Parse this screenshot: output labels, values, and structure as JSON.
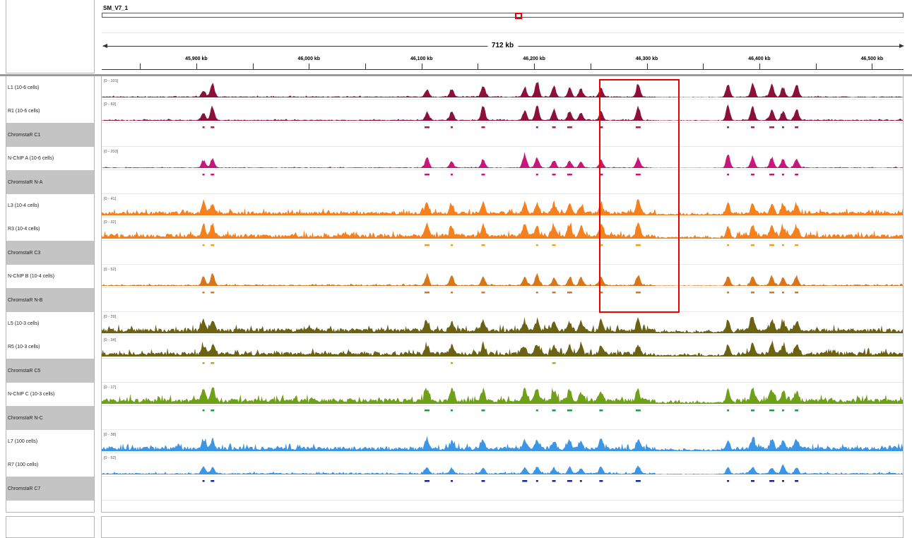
{
  "header": {
    "chromosome": "SM_V7_1",
    "span_label": "712 kb",
    "ruler_ticks": [
      {
        "label": "45,900 kb",
        "kb": 45900
      },
      {
        "label": "46,000 kb",
        "kb": 46000
      },
      {
        "label": "46,100 kb",
        "kb": 46100
      },
      {
        "label": "46,200 kb",
        "kb": 46200
      },
      {
        "label": "46,300 kb",
        "kb": 46300
      },
      {
        "label": "46,400 kb",
        "kb": 46400
      },
      {
        "label": "46,500 kb",
        "kb": 46500
      }
    ],
    "view_start_kb": 45816,
    "view_end_kb": 46528
  },
  "region_of_interest": {
    "start_kb": 46308,
    "end_kb": 46380,
    "color": "#e00000"
  },
  "peak_positions_kb": [
    45906,
    45914,
    46105,
    46127,
    46155,
    46192,
    46203,
    46218,
    46232,
    46242,
    46260,
    46293,
    46373,
    46395,
    46412,
    46422,
    46434
  ],
  "tracks": [
    {
      "name": "L1 (10-6 cells)",
      "type": "signal",
      "range": "[0 - 101]",
      "color": "#8c1038",
      "bg": 0.07,
      "peaks": [
        0.35,
        0.9,
        0.45,
        0.5,
        0.75,
        0.6,
        0.95,
        0.65,
        0.55,
        0.5,
        0.55,
        0.8,
        0.85,
        0.8,
        0.7,
        0.6,
        0.75
      ]
    },
    {
      "name": "R1 (10-6 cells)",
      "type": "signal",
      "range": "[0 - 83]",
      "color": "#8c1038",
      "bg": 0.07,
      "peaks": [
        0.45,
        0.85,
        0.5,
        0.55,
        0.85,
        0.6,
        0.9,
        0.65,
        0.55,
        0.45,
        0.5,
        0.85,
        0.9,
        0.85,
        0.65,
        0.55,
        0.7
      ]
    },
    {
      "name": "ChromstaR C1",
      "type": "peaks",
      "color": "#c0143c",
      "marks": [
        0,
        1,
        2,
        3,
        4,
        6,
        7,
        8,
        10,
        11,
        12,
        13,
        14,
        15,
        16
      ]
    },
    {
      "name": "N-ChIP A (10-6 cells)",
      "type": "signal",
      "range": "[0 - 203]",
      "color": "#c8177a",
      "bg": 0.05,
      "peaks": [
        0.45,
        0.55,
        0.6,
        0.35,
        0.5,
        0.85,
        0.6,
        0.5,
        0.45,
        0.35,
        0.45,
        0.6,
        0.85,
        0.7,
        0.65,
        0.55,
        0.6
      ]
    },
    {
      "name": "ChromstaR N-A",
      "type": "peaks",
      "color": "#c8177a",
      "marks": [
        0,
        1,
        2,
        3,
        4,
        6,
        7,
        8,
        10,
        11,
        12,
        13,
        14,
        15,
        16
      ]
    },
    {
      "name": "L3 (10-4 cells)",
      "type": "signal",
      "range": "[0 - 41]",
      "color": "#f5801e",
      "bg": 0.25,
      "peaks": [
        0.55,
        0.6,
        0.65,
        0.55,
        0.65,
        0.6,
        0.55,
        0.6,
        0.55,
        0.5,
        0.6,
        0.85,
        0.65,
        0.6,
        0.55,
        0.5,
        0.6
      ]
    },
    {
      "name": "R3 (10-4 cells)",
      "type": "signal",
      "range": "[0 - 32]",
      "color": "#f5801e",
      "bg": 0.3,
      "peaks": [
        0.65,
        0.75,
        0.7,
        0.6,
        0.7,
        0.65,
        0.6,
        0.65,
        0.6,
        0.55,
        0.65,
        0.8,
        0.7,
        0.65,
        0.6,
        0.55,
        0.6
      ]
    },
    {
      "name": "ChromstaR C3",
      "type": "peaks",
      "color": "#f0a018",
      "marks": [
        0,
        1,
        2,
        3,
        4,
        6,
        7,
        10,
        11,
        12,
        13,
        14,
        15,
        16
      ]
    },
    {
      "name": "N-ChIP B (10-4 cells)",
      "type": "signal",
      "range": "[0 - 52]",
      "color": "#d8761c",
      "bg": 0.08,
      "peaks": [
        0.55,
        0.75,
        0.6,
        0.65,
        0.5,
        0.55,
        0.7,
        0.45,
        0.5,
        0.45,
        0.5,
        0.65,
        0.6,
        0.55,
        0.55,
        0.5,
        0.55
      ]
    },
    {
      "name": "ChromstaR N-B",
      "type": "peaks",
      "color": "#d8761c",
      "marks": [
        0,
        1,
        2,
        3,
        4,
        6,
        7,
        8,
        10,
        11,
        12,
        13,
        14,
        15,
        16
      ]
    },
    {
      "name": "L5 (10-3 cells)",
      "type": "signal",
      "range": "[0 - 29]",
      "color": "#6b6214",
      "bg": 0.32,
      "peaks": [
        0.6,
        0.65,
        0.6,
        0.55,
        0.6,
        0.6,
        0.55,
        0.6,
        0.55,
        0.5,
        0.6,
        0.65,
        0.7,
        0.85,
        0.65,
        0.6,
        0.6
      ]
    },
    {
      "name": "R5 (10-3 cells)",
      "type": "signal",
      "range": "[0 - 34]",
      "color": "#6b6214",
      "bg": 0.3,
      "peaks": [
        0.55,
        0.6,
        0.55,
        0.5,
        0.55,
        0.5,
        0.55,
        0.5,
        0.5,
        0.45,
        0.5,
        0.55,
        0.6,
        0.65,
        0.6,
        0.55,
        0.55
      ]
    },
    {
      "name": "ChromstaR C5",
      "type": "peaks",
      "color": "#b8a818",
      "marks": [
        0,
        1,
        3,
        7
      ]
    },
    {
      "name": "N-ChIP C (10-3 cells)",
      "type": "signal",
      "range": "[0 - 17]",
      "color": "#6ea018",
      "bg": 0.35,
      "peaks": [
        0.7,
        0.9,
        0.6,
        0.75,
        0.7,
        0.65,
        0.7,
        0.6,
        0.65,
        0.55,
        0.6,
        0.65,
        0.75,
        0.7,
        0.65,
        0.6,
        0.6
      ]
    },
    {
      "name": "ChromstaR N-C",
      "type": "peaks",
      "color": "#1e9a46",
      "marks": [
        0,
        1,
        2,
        3,
        4,
        6,
        7,
        8,
        10,
        11,
        12,
        13,
        14,
        15,
        16
      ]
    },
    {
      "name": "L7 (100 cells)",
      "type": "signal",
      "range": "[0 - 38]",
      "color": "#3c96e6",
      "bg": 0.28,
      "peaks": [
        0.55,
        0.5,
        0.5,
        0.45,
        0.5,
        0.55,
        0.5,
        0.45,
        0.5,
        0.45,
        0.5,
        0.55,
        0.6,
        0.65,
        0.55,
        0.5,
        0.55
      ]
    },
    {
      "name": "R7 (100 cells)",
      "type": "signal",
      "range": "[0 - 52]",
      "color": "#3c96e6",
      "bg": 0.1,
      "peaks": [
        0.45,
        0.4,
        0.4,
        0.35,
        0.4,
        0.4,
        0.45,
        0.35,
        0.4,
        0.35,
        0.4,
        0.45,
        0.4,
        0.45,
        0.4,
        0.5,
        0.4
      ]
    },
    {
      "name": "ChromstaR C7",
      "type": "peaks",
      "color": "#14249a",
      "marks": [
        0,
        1,
        2,
        3,
        4,
        5,
        6,
        7,
        8,
        9,
        10,
        11,
        12,
        13,
        14,
        15,
        16
      ]
    }
  ]
}
